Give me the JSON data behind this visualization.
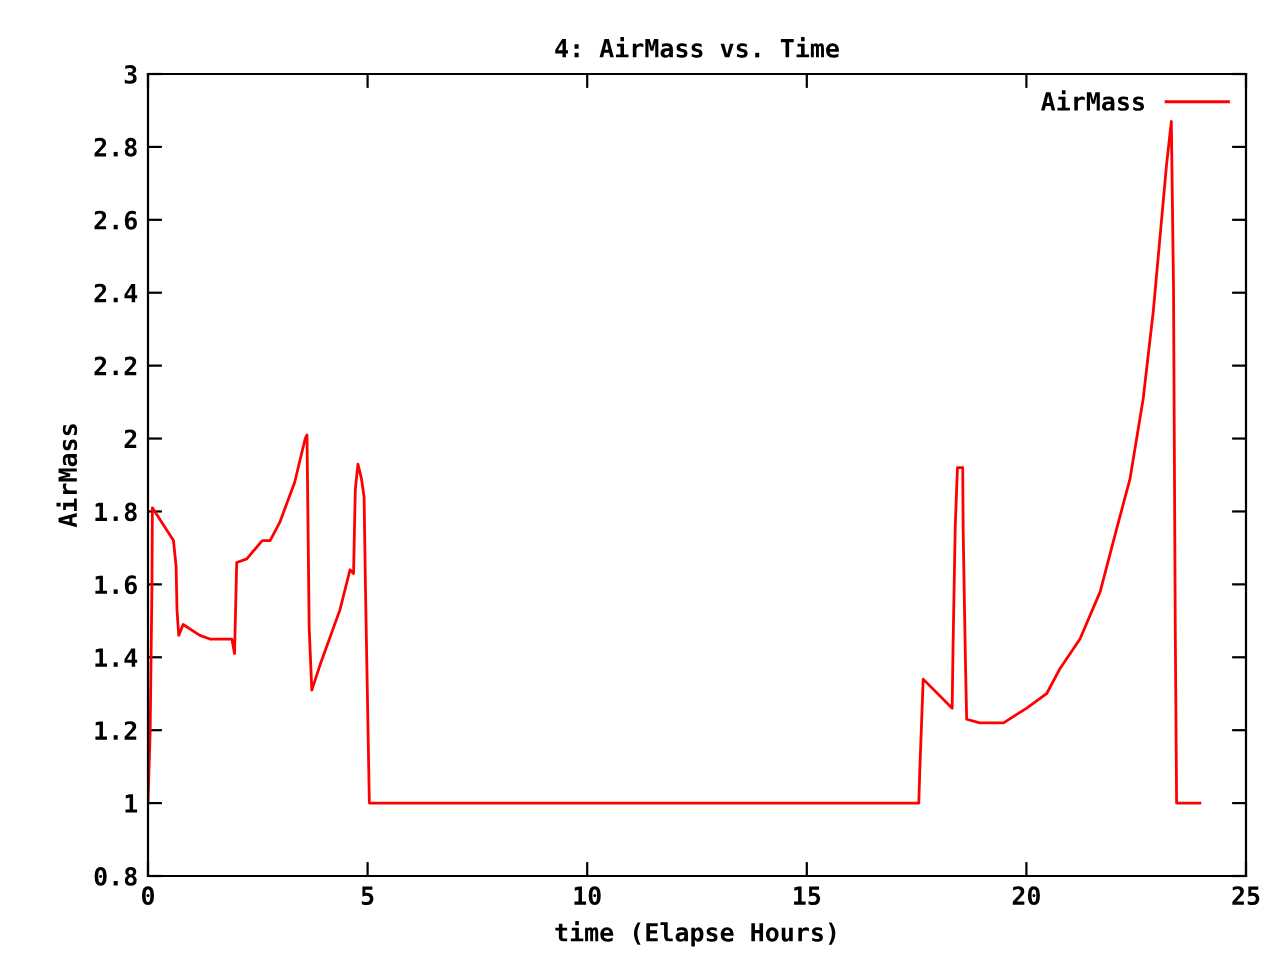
{
  "chart_data": {
    "type": "line",
    "title": "4: AirMass vs. Time",
    "xlabel": "time (Elapse Hours)",
    "ylabel": "AirMass",
    "xlim": [
      0,
      25
    ],
    "xticks": [
      0,
      5,
      10,
      15,
      20,
      25
    ],
    "ylim": [
      0.8,
      3
    ],
    "yticks": [
      0.8,
      1,
      1.2,
      1.4,
      1.6,
      1.8,
      2,
      2.2,
      2.4,
      2.6,
      2.8,
      3
    ],
    "grid": false,
    "legend": "top right",
    "marker": "none",
    "line_style": "solid",
    "series": [
      {
        "name": "AirMass",
        "color": "#ff0000",
        "x": [
          0,
          0.05,
          0.09,
          0.1,
          0.58,
          0.64,
          0.66,
          0.7,
          0.8,
          1.18,
          1.41,
          1.91,
          1.97,
          2.02,
          2.25,
          2.6,
          2.78,
          3.0,
          3.34,
          3.58,
          3.62,
          3.67,
          3.73,
          3.92,
          4.37,
          4.6,
          4.68,
          4.72,
          4.78,
          4.86,
          4.92,
          4.95,
          5.01,
          5.04,
          17.55,
          17.57,
          17.65,
          18.31,
          18.33,
          18.38,
          18.43,
          18.55,
          18.56,
          18.61,
          18.64,
          18.94,
          19.48,
          20.0,
          20.46,
          20.77,
          21.22,
          21.68,
          22.05,
          22.36,
          22.66,
          22.89,
          23.04,
          23.19,
          23.3,
          23.35,
          23.39,
          23.42,
          23.95
        ],
        "values": [
          1,
          1.2,
          1.6,
          1.81,
          1.72,
          1.65,
          1.53,
          1.46,
          1.49,
          1.46,
          1.45,
          1.45,
          1.41,
          1.66,
          1.67,
          1.72,
          1.72,
          1.77,
          1.88,
          2.0,
          2.01,
          1.48,
          1.31,
          1.38,
          1.53,
          1.64,
          1.63,
          1.86,
          1.93,
          1.89,
          1.84,
          1.6,
          1.2,
          1,
          1,
          1.08,
          1.34,
          1.26,
          1.43,
          1.76,
          1.92,
          1.92,
          1.75,
          1.4,
          1.23,
          1.22,
          1.22,
          1.26,
          1.3,
          1.37,
          1.45,
          1.58,
          1.75,
          1.89,
          2.11,
          2.35,
          2.55,
          2.75,
          2.87,
          2.41,
          1.47,
          1,
          1
        ]
      }
    ]
  }
}
